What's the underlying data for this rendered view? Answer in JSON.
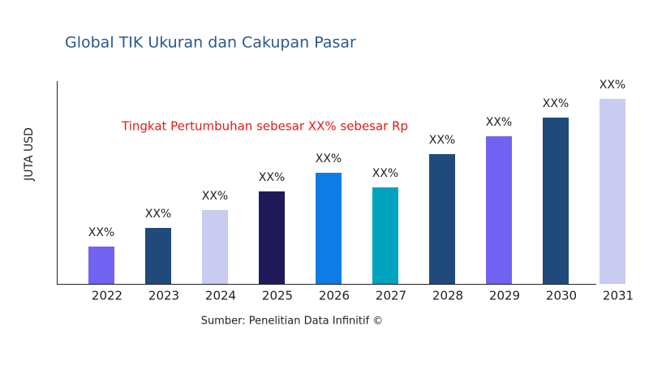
{
  "chart_data": {
    "type": "bar",
    "title": "Global TIK Ukuran dan Cakupan Pasar",
    "y_label": "JUTA USD",
    "annotation": "Tingkat Pertumbuhan sebesar XX% sebesar Rp",
    "source": "Sumber: Penelitian Data Infinitif ©",
    "categories": [
      "2022",
      "2023",
      "2024",
      "2025",
      "2026",
      "2027",
      "2028",
      "2029",
      "2030",
      "2031"
    ],
    "values": [
      46,
      69,
      91,
      114,
      137,
      119,
      160,
      182,
      205,
      228
    ],
    "value_labels": [
      "XX%",
      "XX%",
      "XX%",
      "XX%",
      "XX%",
      "XX%",
      "XX%",
      "XX%",
      "XX%",
      "XX%"
    ],
    "colors": [
      "#7262f2",
      "#1f4a7a",
      "#c9cbf1",
      "#1e1a5a",
      "#0f7be6",
      "#00a3bd",
      "#1f4a7a",
      "#7262f2",
      "#1f4a7a",
      "#c9cbf1"
    ],
    "ylim": [
      0,
      250
    ]
  }
}
